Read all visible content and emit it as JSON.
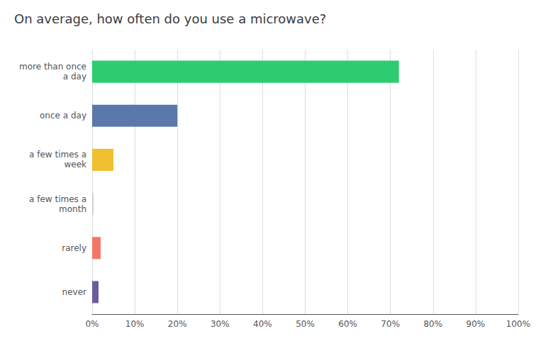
{
  "chart_data": {
    "type": "bar",
    "orientation": "horizontal",
    "title": "On average, how often do you use a microwave?",
    "categories": [
      "never",
      "rarely",
      "a few times a\nmonth",
      "a few times a\nweek",
      "once a day",
      "more than once\na day"
    ],
    "values": [
      1.5,
      2.0,
      0.3,
      5.0,
      20.0,
      72.0
    ],
    "colors": [
      "#6b5b9e",
      "#f07868",
      "#cccccc",
      "#f0c030",
      "#5b78aa",
      "#2ecc71"
    ],
    "xlim": [
      0,
      100
    ],
    "xticks": [
      {
        "value": 0,
        "label": "0%"
      },
      {
        "value": 10,
        "label": "10%"
      },
      {
        "value": 20,
        "label": "20%"
      },
      {
        "value": 30,
        "label": "30%"
      },
      {
        "value": 40,
        "label": "40%"
      },
      {
        "value": 50,
        "label": "50%"
      },
      {
        "value": 60,
        "label": "60%"
      },
      {
        "value": 70,
        "label": "70%"
      },
      {
        "value": 80,
        "label": "80%"
      },
      {
        "value": 90,
        "label": "90%"
      },
      {
        "value": 100,
        "label": "100%"
      }
    ],
    "grid": true
  }
}
